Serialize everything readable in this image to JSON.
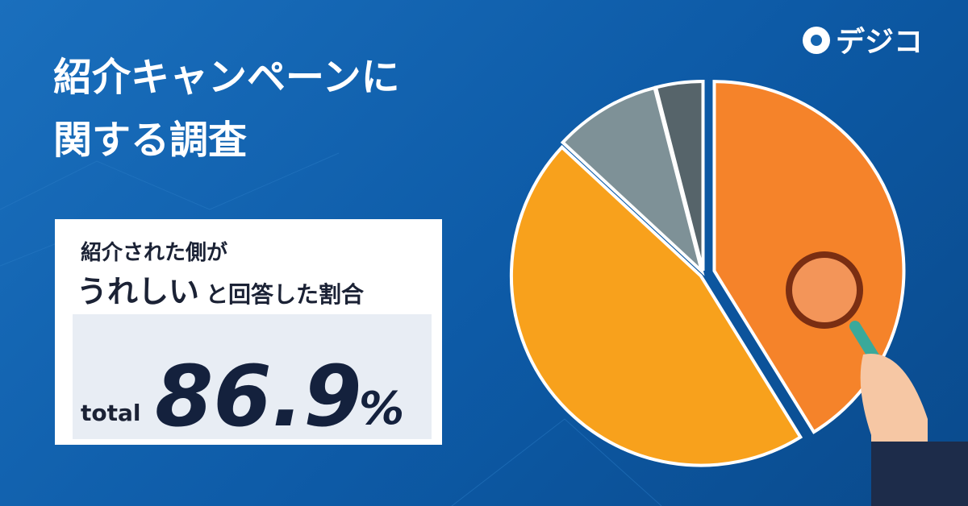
{
  "chart_data": {
    "type": "pie",
    "title_lines": [
      "紹介キャンペーンに",
      "関する調査"
    ],
    "logo": "デジコ",
    "box_lines": [
      "紹介された側が",
      "うれしい",
      "と回答した割合"
    ],
    "total_label": "total",
    "total_value": 86.9,
    "total_unit": "%",
    "values": [
      41.2,
      45.7,
      9.1,
      4.0
    ],
    "colors": [
      "#f5832a",
      "#f8a11c",
      "#7e9197",
      "#56646a"
    ]
  }
}
